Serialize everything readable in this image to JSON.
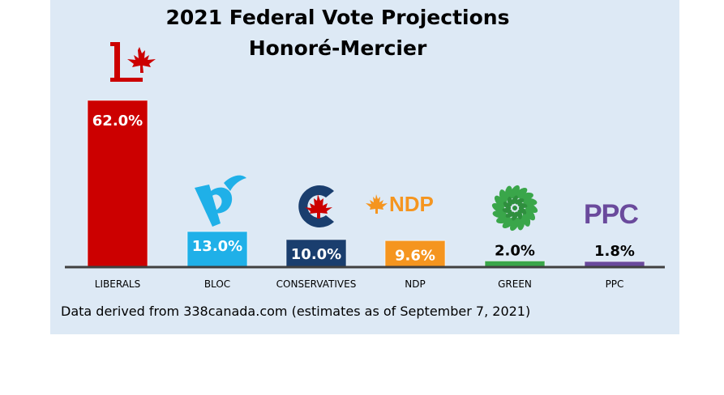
{
  "title": "2021 Federal Vote Projections",
  "subtitle": "Honoré-Mercier",
  "source_note": "Data derived from 338canada.com (estimates as of September 7, 2021)",
  "logos": {
    "ndp_text": "NDP",
    "ppc_text": "PPC"
  },
  "colors": {
    "liberals": "#cc0000",
    "bloc": "#1fb0e8",
    "conservatives": "#1a3e6e",
    "ndp": "#f5951f",
    "green": "#3aa64a",
    "ppc": "#6a4a9c"
  },
  "chart_data": {
    "type": "bar",
    "categories": [
      "LIBERALS",
      "BLOC",
      "CONSERVATIVES",
      "NDP",
      "GREEN",
      "PPC"
    ],
    "values": [
      62.0,
      13.0,
      10.0,
      9.6,
      2.0,
      1.8
    ],
    "value_labels": [
      "62.0%",
      "13.0%",
      "10.0%",
      "9.6%",
      "2.0%",
      "1.8%"
    ],
    "ylim": [
      0,
      62
    ],
    "grid": false,
    "legend": "none"
  }
}
